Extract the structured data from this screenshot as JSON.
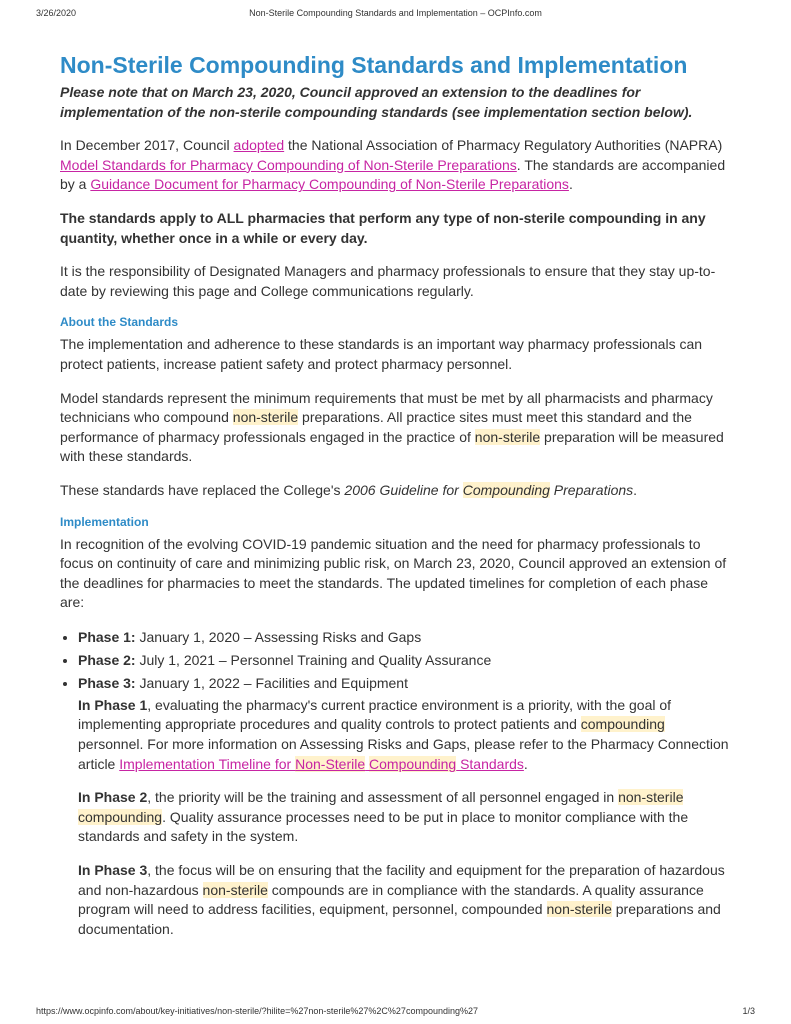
{
  "meta": {
    "date": "3/26/2020",
    "doc_title": "Non-Sterile Compounding Standards and Implementation – OCPInfo.com",
    "url": "https://www.ocpinfo.com/about/key-initiatives/non-sterile/?hilite=%27non-sterile%27%2C%27compounding%27",
    "page": "1/3"
  },
  "title": "Non-Sterile Compounding Standards and Implementation",
  "notice": "Please note that on March 23, 2020, Council approved an extension to the deadlines for implementation of the non-sterile compounding standards (see implementation section below).",
  "intro": {
    "t1": "In December 2017, Council ",
    "link1": "adopted",
    "t2": " the National Association of Pharmacy Regulatory Authorities (NAPRA) ",
    "link2": "Model Standards for Pharmacy Compounding of Non-Sterile Preparations",
    "t3": ". The standards are accompanied by a ",
    "link3": "Guidance Document for Pharmacy Compounding of Non-Sterile Preparations",
    "t4": "."
  },
  "apply_bold": "The standards apply to ALL pharmacies that perform any type of non-sterile compounding in any quantity, whether once in a while or every day.",
  "responsibility": "It is the responsibility of Designated Managers and pharmacy professionals to ensure that they stay up-to-date by reviewing this page and College communications regularly.",
  "about_head": "About the Standards",
  "about_p1": "The implementation and adherence to these standards is an important way pharmacy professionals can protect patients, increase patient safety and protect pharmacy personnel.",
  "about_p2": {
    "t1": "Model standards represent the minimum requirements that must be met by all pharmacists and pharmacy technicians who compound ",
    "hl1": "non-sterile",
    "t2": " preparations. All practice sites must meet this standard and the performance of pharmacy professionals engaged in the practice of ",
    "hl2": "non-sterile",
    "t3": " preparation will be measured with these standards."
  },
  "about_p3": {
    "t1": "These standards have replaced the College's ",
    "italic1": "2006 Guideline for ",
    "hl1": "Compounding",
    "italic2": " Preparations",
    "t2": "."
  },
  "impl_head": "Implementation",
  "impl_intro": "In recognition of the evolving COVID-19 pandemic situation and the need for pharmacy professionals to focus on continuity of care and minimizing public risk, on March 23, 2020, Council approved an extension of the deadlines for pharmacies to meet the standards. The updated timelines for completion of each phase are:",
  "phases": [
    {
      "label": "Phase 1:",
      "text": " January 1, 2020 – Assessing Risks and Gaps"
    },
    {
      "label": "Phase 2:",
      "text": " July 1, 2021 – Personnel Training and Quality Assurance"
    },
    {
      "label": "Phase 3:",
      "text": " January 1, 2022 – Facilities and Equipment"
    }
  ],
  "phase1": {
    "b": "In Phase 1",
    "t1": ", evaluating the pharmacy's current practice environment is a priority, with the goal of implementing appropriate procedures and quality controls to protect patients and ",
    "hl1": "compounding",
    "t2": " personnel. For more information on Assessing Risks and Gaps, please refer to the Pharmacy Connection article ",
    "link1": "Implementation Timeline for ",
    "linkhl1": "Non-Sterile",
    "linksp": " ",
    "linkhl2": "Compounding",
    "link2": " Standards",
    "t3": "."
  },
  "phase2": {
    "b": "In Phase 2",
    "t1": ", the priority will be the training and assessment of all personnel engaged in ",
    "hl1": "non-sterile",
    "sp": " ",
    "hl2": "compounding",
    "t2": ". Quality assurance processes need to be put in place to monitor compliance with the standards and safety in the system."
  },
  "phase3": {
    "b": "In Phase 3",
    "t1": ", the focus will be on ensuring that the facility and equipment for the preparation of hazardous and non-hazardous ",
    "hl1": "non-sterile",
    "t2": " compounds are in compliance with the standards. A quality assurance program will need to address facilities, equipment, personnel, compounded ",
    "hl2": "non-sterile",
    "t3": " preparations and documentation."
  }
}
